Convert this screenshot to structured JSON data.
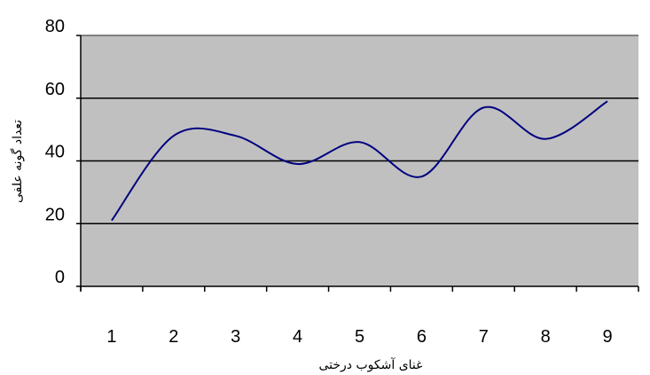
{
  "chart_data": {
    "type": "line",
    "title": "",
    "xlabel": "غنای آشکوب درختی",
    "ylabel": "تعداد گونه علفی",
    "x": [
      1,
      2,
      3,
      4,
      5,
      6,
      7,
      8,
      9
    ],
    "categories": [
      "1",
      "2",
      "3",
      "4",
      "5",
      "6",
      "7",
      "8",
      "9"
    ],
    "series": [
      {
        "values": [
          21,
          48,
          48,
          39,
          46,
          35,
          57,
          47,
          59
        ]
      }
    ],
    "ylim": [
      0,
      80
    ],
    "yticks": [
      0,
      20,
      40,
      60,
      80
    ],
    "ytick_labels": [
      "0",
      "20",
      "40",
      "60",
      "80"
    ],
    "grid": true,
    "legend": "none",
    "colors": {
      "plot_background": "#c0c0c0",
      "line": "#000080",
      "gridline": "#000000"
    }
  }
}
